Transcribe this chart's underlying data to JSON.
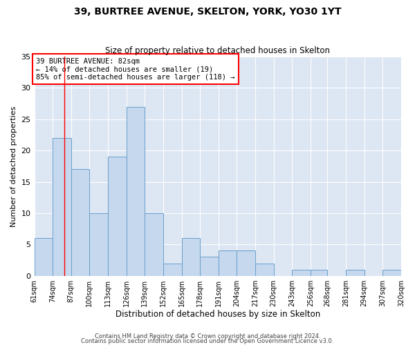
{
  "title": "39, BURTREE AVENUE, SKELTON, YORK, YO30 1YT",
  "subtitle": "Size of property relative to detached houses in Skelton",
  "xlabel": "Distribution of detached houses by size in Skelton",
  "ylabel": "Number of detached properties",
  "bar_color": "#c5d8ee",
  "bar_edge_color": "#6a9fcb",
  "background_color": "#dde6f3",
  "bin_edges": [
    61,
    74,
    87,
    100,
    113,
    126,
    139,
    152,
    165,
    178,
    191,
    204,
    217,
    230,
    243,
    256,
    268,
    281,
    294,
    307,
    320
  ],
  "bin_labels": [
    "61sqm",
    "74sqm",
    "87sqm",
    "100sqm",
    "113sqm",
    "126sqm",
    "139sqm",
    "152sqm",
    "165sqm",
    "178sqm",
    "191sqm",
    "204sqm",
    "217sqm",
    "230sqm",
    "243sqm",
    "256sqm",
    "268sqm",
    "281sqm",
    "294sqm",
    "307sqm",
    "320sqm"
  ],
  "counts": [
    6,
    22,
    17,
    10,
    19,
    27,
    10,
    2,
    6,
    3,
    4,
    4,
    2,
    0,
    1,
    1,
    0,
    1,
    0,
    1
  ],
  "red_line_x": 82,
  "annotation_title": "39 BURTREE AVENUE: 82sqm",
  "annotation_line1": "← 14% of detached houses are smaller (19)",
  "annotation_line2": "85% of semi-detached houses are larger (118) →",
  "ylim": [
    0,
    35
  ],
  "yticks": [
    0,
    5,
    10,
    15,
    20,
    25,
    30,
    35
  ],
  "footer1": "Contains HM Land Registry data © Crown copyright and database right 2024.",
  "footer2": "Contains public sector information licensed under the Open Government Licence v3.0."
}
